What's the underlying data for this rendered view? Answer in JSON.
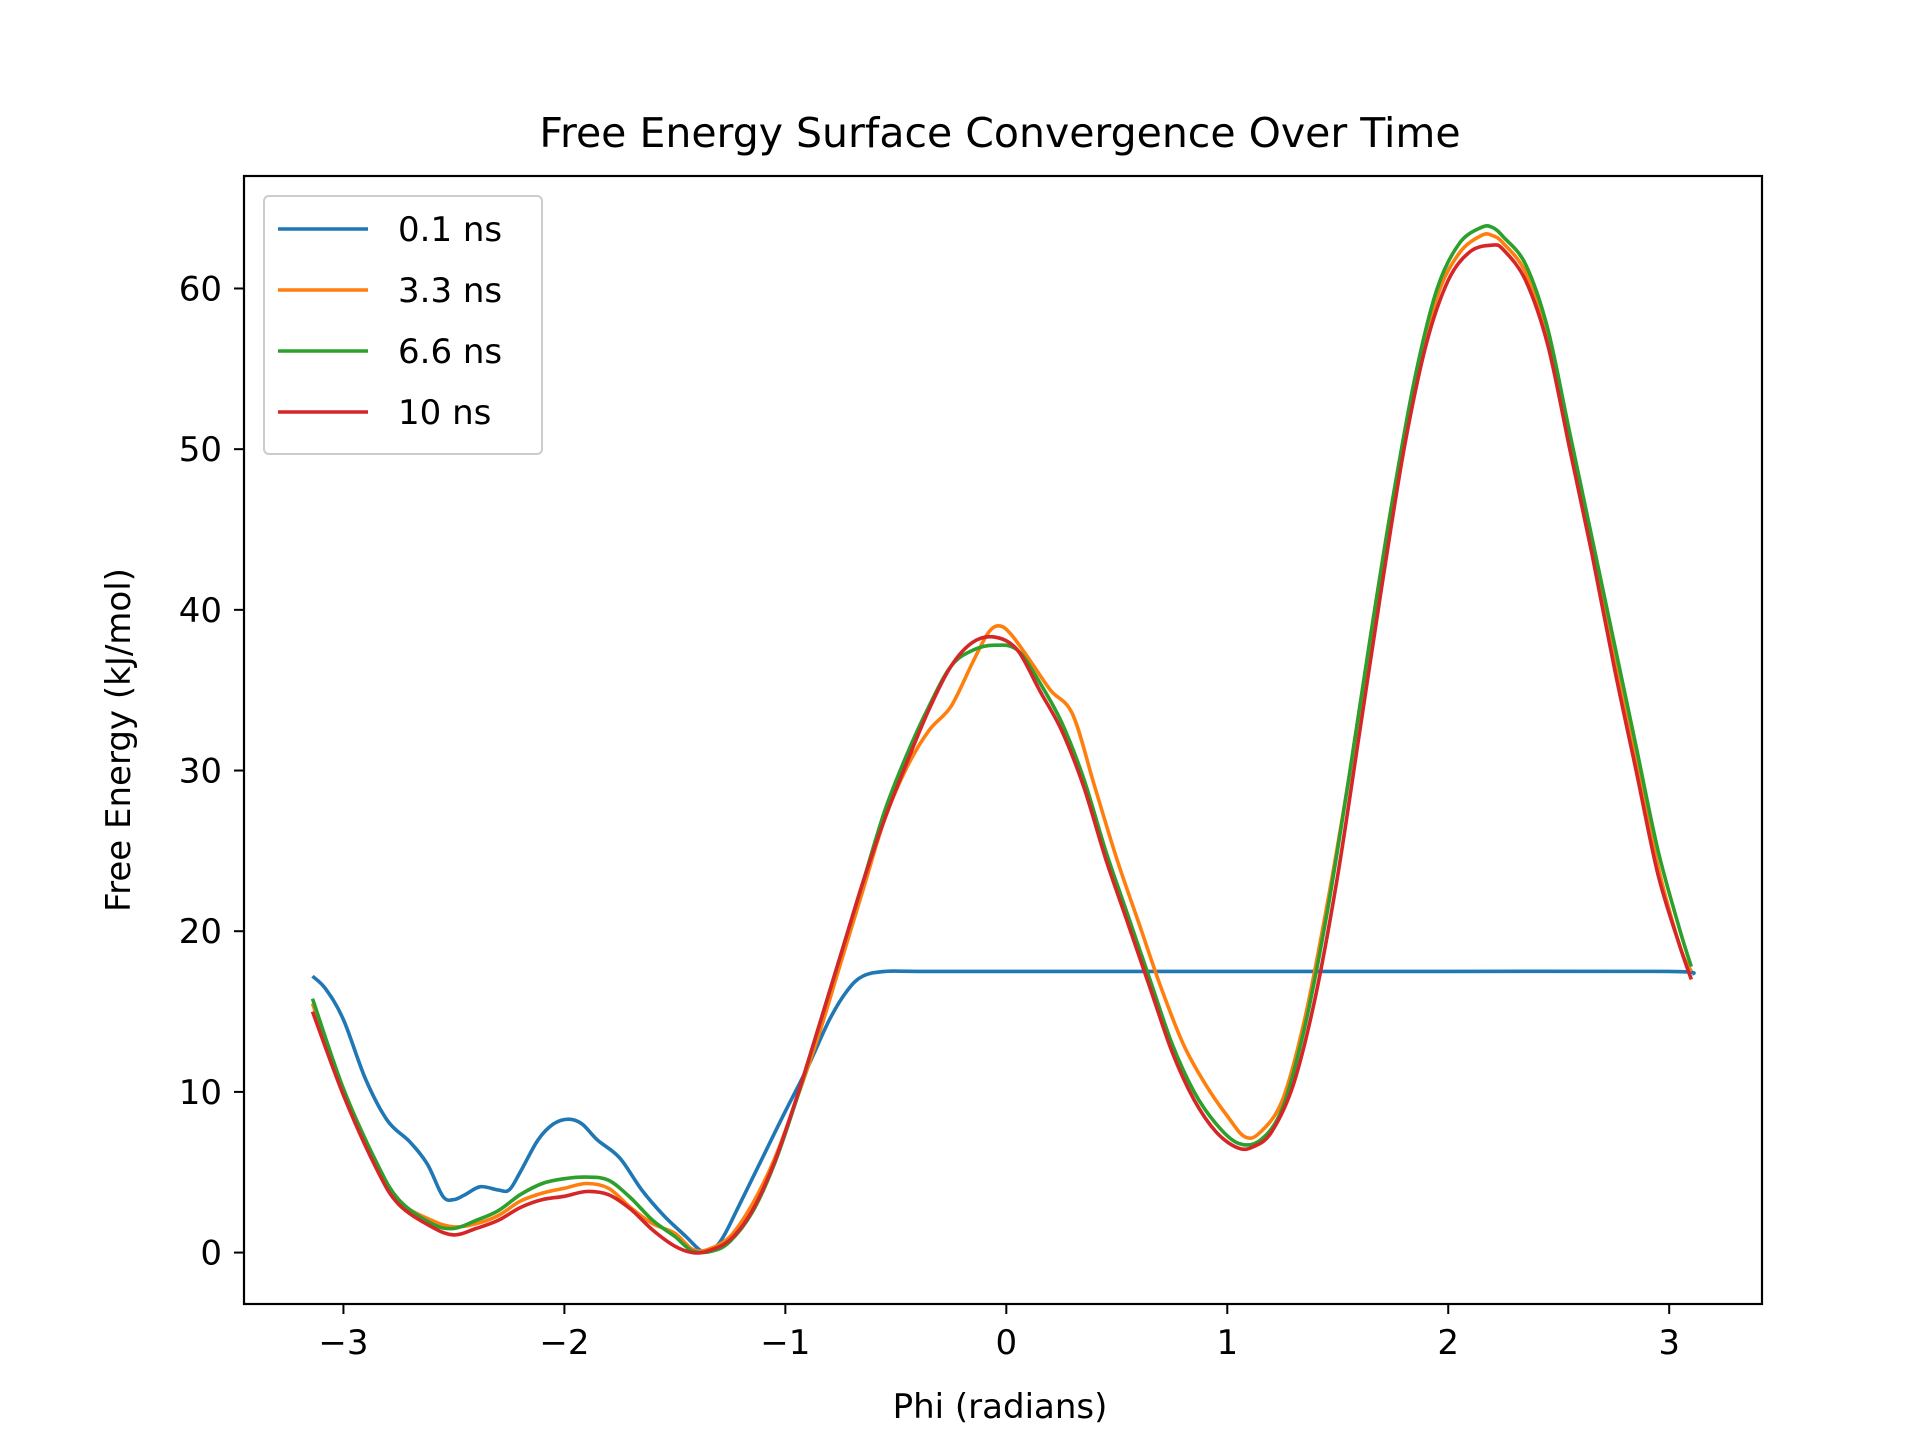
{
  "chart_data": {
    "type": "line",
    "title": "Free Energy Surface Convergence Over Time",
    "xlabel": "Phi (radians)",
    "ylabel": "Free Energy (kJ/mol)",
    "xlim": [
      -3.45,
      3.42
    ],
    "ylim": [
      -3.2,
      67.0
    ],
    "x_ticks": [
      -3,
      -2,
      -1,
      0,
      1,
      2,
      3
    ],
    "x_tick_labels": [
      "−3",
      "−2",
      "−1",
      "0",
      "1",
      "2",
      "3"
    ],
    "y_ticks": [
      0,
      10,
      20,
      30,
      40,
      50,
      60
    ],
    "y_tick_labels": [
      "0",
      "10",
      "20",
      "30",
      "40",
      "50",
      "60"
    ],
    "grid": false,
    "legend_position": "top-left",
    "series": [
      {
        "name": "0.1 ns",
        "color": "#1f77b4",
        "points": [
          [
            -3.14,
            17.2
          ],
          [
            -3.08,
            16.4
          ],
          [
            -3.0,
            14.5
          ],
          [
            -2.9,
            10.8
          ],
          [
            -2.8,
            8.2
          ],
          [
            -2.7,
            6.9
          ],
          [
            -2.62,
            5.5
          ],
          [
            -2.55,
            3.5
          ],
          [
            -2.5,
            3.3
          ],
          [
            -2.45,
            3.6
          ],
          [
            -2.38,
            4.1
          ],
          [
            -2.3,
            3.9
          ],
          [
            -2.25,
            3.9
          ],
          [
            -2.2,
            5.0
          ],
          [
            -2.12,
            7.0
          ],
          [
            -2.05,
            8.0
          ],
          [
            -1.98,
            8.3
          ],
          [
            -1.92,
            8.0
          ],
          [
            -1.85,
            7.0
          ],
          [
            -1.75,
            5.9
          ],
          [
            -1.65,
            3.9
          ],
          [
            -1.55,
            2.3
          ],
          [
            -1.45,
            1.0
          ],
          [
            -1.38,
            0.1
          ],
          [
            -1.33,
            0.2
          ],
          [
            -1.28,
            1.0
          ],
          [
            -1.2,
            3.2
          ],
          [
            -1.1,
            6.0
          ],
          [
            -1.0,
            8.8
          ],
          [
            -0.9,
            11.5
          ],
          [
            -0.8,
            14.5
          ],
          [
            -0.72,
            16.3
          ],
          [
            -0.65,
            17.2
          ],
          [
            -0.55,
            17.5
          ],
          [
            -0.4,
            17.5
          ],
          [
            0.0,
            17.5
          ],
          [
            1.0,
            17.5
          ],
          [
            2.0,
            17.5
          ],
          [
            3.0,
            17.5
          ],
          [
            3.1,
            17.3
          ]
        ]
      },
      {
        "name": "3.3 ns",
        "color": "#ff7f0e",
        "points": [
          [
            -3.14,
            15.5
          ],
          [
            -3.0,
            10.0
          ],
          [
            -2.85,
            5.5
          ],
          [
            -2.75,
            3.2
          ],
          [
            -2.6,
            2.0
          ],
          [
            -2.5,
            1.6
          ],
          [
            -2.4,
            1.8
          ],
          [
            -2.3,
            2.3
          ],
          [
            -2.2,
            3.2
          ],
          [
            -2.1,
            3.7
          ],
          [
            -2.0,
            4.0
          ],
          [
            -1.9,
            4.3
          ],
          [
            -1.8,
            4.0
          ],
          [
            -1.7,
            2.8
          ],
          [
            -1.6,
            1.8
          ],
          [
            -1.5,
            1.2
          ],
          [
            -1.42,
            0.2
          ],
          [
            -1.35,
            0.2
          ],
          [
            -1.25,
            1.0
          ],
          [
            -1.15,
            3.0
          ],
          [
            -1.05,
            5.8
          ],
          [
            -0.95,
            9.5
          ],
          [
            -0.85,
            13.5
          ],
          [
            -0.75,
            18.0
          ],
          [
            -0.65,
            22.5
          ],
          [
            -0.55,
            27.0
          ],
          [
            -0.45,
            30.2
          ],
          [
            -0.35,
            32.5
          ],
          [
            -0.25,
            34.0
          ],
          [
            -0.15,
            36.8
          ],
          [
            -0.08,
            38.6
          ],
          [
            -0.03,
            39.0
          ],
          [
            0.02,
            38.5
          ],
          [
            0.1,
            37.0
          ],
          [
            0.2,
            35.0
          ],
          [
            0.3,
            33.5
          ],
          [
            0.4,
            29.0
          ],
          [
            0.5,
            24.5
          ],
          [
            0.6,
            20.5
          ],
          [
            0.7,
            16.5
          ],
          [
            0.8,
            13.0
          ],
          [
            0.9,
            10.5
          ],
          [
            1.0,
            8.5
          ],
          [
            1.08,
            7.2
          ],
          [
            1.15,
            7.5
          ],
          [
            1.25,
            9.5
          ],
          [
            1.35,
            14.5
          ],
          [
            1.45,
            21.5
          ],
          [
            1.55,
            29.5
          ],
          [
            1.65,
            38.5
          ],
          [
            1.75,
            47.0
          ],
          [
            1.85,
            54.0
          ],
          [
            1.95,
            59.5
          ],
          [
            2.05,
            62.2
          ],
          [
            2.15,
            63.3
          ],
          [
            2.2,
            63.3
          ],
          [
            2.25,
            62.8
          ],
          [
            2.35,
            61.0
          ],
          [
            2.45,
            57.0
          ],
          [
            2.55,
            50.5
          ],
          [
            2.65,
            44.0
          ],
          [
            2.75,
            37.0
          ],
          [
            2.85,
            30.5
          ],
          [
            2.95,
            24.0
          ],
          [
            3.05,
            19.0
          ],
          [
            3.1,
            17.5
          ]
        ]
      },
      {
        "name": "6.6 ns",
        "color": "#2ca02c",
        "points": [
          [
            -3.14,
            15.8
          ],
          [
            -3.0,
            10.2
          ],
          [
            -2.85,
            5.6
          ],
          [
            -2.75,
            3.3
          ],
          [
            -2.6,
            1.8
          ],
          [
            -2.5,
            1.5
          ],
          [
            -2.4,
            2.0
          ],
          [
            -2.3,
            2.6
          ],
          [
            -2.2,
            3.6
          ],
          [
            -2.1,
            4.3
          ],
          [
            -2.0,
            4.6
          ],
          [
            -1.9,
            4.7
          ],
          [
            -1.8,
            4.5
          ],
          [
            -1.7,
            3.4
          ],
          [
            -1.6,
            2.0
          ],
          [
            -1.5,
            1.0
          ],
          [
            -1.42,
            0.1
          ],
          [
            -1.33,
            0.1
          ],
          [
            -1.25,
            0.7
          ],
          [
            -1.15,
            2.5
          ],
          [
            -1.05,
            5.5
          ],
          [
            -0.95,
            9.5
          ],
          [
            -0.85,
            14.0
          ],
          [
            -0.75,
            18.5
          ],
          [
            -0.65,
            23.0
          ],
          [
            -0.55,
            27.5
          ],
          [
            -0.45,
            31.0
          ],
          [
            -0.35,
            34.0
          ],
          [
            -0.25,
            36.5
          ],
          [
            -0.15,
            37.5
          ],
          [
            -0.05,
            37.8
          ],
          [
            0.05,
            37.5
          ],
          [
            0.15,
            35.5
          ],
          [
            0.25,
            33.0
          ],
          [
            0.35,
            29.5
          ],
          [
            0.45,
            25.0
          ],
          [
            0.55,
            21.0
          ],
          [
            0.65,
            17.0
          ],
          [
            0.75,
            13.0
          ],
          [
            0.85,
            10.0
          ],
          [
            0.95,
            8.0
          ],
          [
            1.05,
            6.8
          ],
          [
            1.15,
            7.0
          ],
          [
            1.25,
            9.0
          ],
          [
            1.35,
            14.0
          ],
          [
            1.45,
            21.0
          ],
          [
            1.55,
            29.5
          ],
          [
            1.65,
            38.5
          ],
          [
            1.75,
            47.0
          ],
          [
            1.85,
            54.5
          ],
          [
            1.95,
            60.0
          ],
          [
            2.05,
            62.8
          ],
          [
            2.15,
            63.8
          ],
          [
            2.2,
            63.8
          ],
          [
            2.25,
            63.2
          ],
          [
            2.35,
            61.5
          ],
          [
            2.45,
            57.5
          ],
          [
            2.55,
            51.0
          ],
          [
            2.65,
            44.5
          ],
          [
            2.75,
            38.0
          ],
          [
            2.85,
            31.5
          ],
          [
            2.95,
            25.0
          ],
          [
            3.05,
            20.0
          ],
          [
            3.1,
            17.8
          ]
        ]
      },
      {
        "name": "10 ns",
        "color": "#d62728",
        "points": [
          [
            -3.14,
            15.0
          ],
          [
            -3.0,
            9.8
          ],
          [
            -2.85,
            5.2
          ],
          [
            -2.75,
            3.0
          ],
          [
            -2.6,
            1.6
          ],
          [
            -2.5,
            1.1
          ],
          [
            -2.4,
            1.5
          ],
          [
            -2.3,
            2.0
          ],
          [
            -2.2,
            2.8
          ],
          [
            -2.1,
            3.3
          ],
          [
            -2.0,
            3.5
          ],
          [
            -1.9,
            3.8
          ],
          [
            -1.8,
            3.6
          ],
          [
            -1.7,
            2.7
          ],
          [
            -1.6,
            1.4
          ],
          [
            -1.5,
            0.4
          ],
          [
            -1.42,
            0.0
          ],
          [
            -1.35,
            0.1
          ],
          [
            -1.25,
            0.8
          ],
          [
            -1.15,
            2.6
          ],
          [
            -1.05,
            5.6
          ],
          [
            -0.95,
            9.6
          ],
          [
            -0.85,
            14.0
          ],
          [
            -0.75,
            18.5
          ],
          [
            -0.65,
            23.0
          ],
          [
            -0.55,
            27.0
          ],
          [
            -0.45,
            30.5
          ],
          [
            -0.35,
            33.8
          ],
          [
            -0.25,
            36.5
          ],
          [
            -0.15,
            38.0
          ],
          [
            -0.05,
            38.3
          ],
          [
            0.05,
            37.5
          ],
          [
            0.15,
            35.0
          ],
          [
            0.25,
            32.5
          ],
          [
            0.35,
            29.0
          ],
          [
            0.45,
            24.5
          ],
          [
            0.55,
            20.5
          ],
          [
            0.65,
            16.5
          ],
          [
            0.75,
            12.5
          ],
          [
            0.85,
            9.5
          ],
          [
            0.95,
            7.5
          ],
          [
            1.05,
            6.5
          ],
          [
            1.12,
            6.6
          ],
          [
            1.2,
            7.5
          ],
          [
            1.3,
            10.5
          ],
          [
            1.4,
            16.0
          ],
          [
            1.5,
            23.5
          ],
          [
            1.6,
            32.5
          ],
          [
            1.7,
            41.5
          ],
          [
            1.8,
            50.0
          ],
          [
            1.9,
            56.5
          ],
          [
            2.0,
            60.5
          ],
          [
            2.1,
            62.3
          ],
          [
            2.2,
            62.7
          ],
          [
            2.25,
            62.4
          ],
          [
            2.35,
            60.5
          ],
          [
            2.45,
            56.5
          ],
          [
            2.55,
            50.0
          ],
          [
            2.65,
            43.5
          ],
          [
            2.75,
            36.5
          ],
          [
            2.85,
            30.0
          ],
          [
            2.95,
            23.5
          ],
          [
            3.05,
            19.0
          ],
          [
            3.1,
            17.0
          ]
        ]
      }
    ]
  }
}
